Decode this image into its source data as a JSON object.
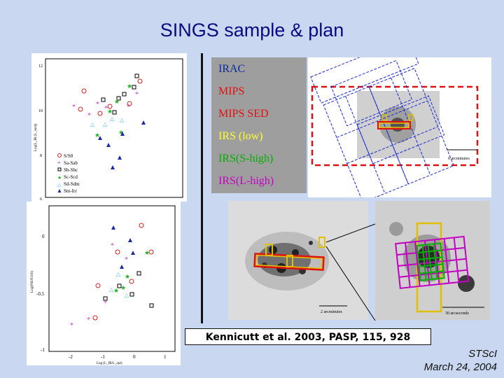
{
  "title": "SINGS sample & plan",
  "legend_items": [
    {
      "label": "IRAC",
      "color": "#0a2a9c"
    },
    {
      "label": "MIPS",
      "color": "#e01010"
    },
    {
      "label": "MIPS SED",
      "color": "#e01010"
    },
    {
      "label": "IRS (low)",
      "color": "#ffff30"
    },
    {
      "label": "IRS(S-high)",
      "color": "#00b000"
    },
    {
      "label": "IRS(L-high)",
      "color": "#c400c4"
    }
  ],
  "top_plot": {
    "ylabel": "Log(L_IR (L_sun))",
    "yticks": [
      "12",
      "10",
      "8",
      "6"
    ],
    "classes": [
      "S/S0",
      "Sa-Sab",
      "Sb-Sbc",
      "Sc-Scd",
      "Sd-Sdm",
      "Sm-Irr"
    ]
  },
  "bottom_plot": {
    "ylabel": "Log(F60/F100)",
    "xlabel": "Log (L_IR/L_opt)",
    "yticks": [
      "0",
      "-0.5",
      "-1"
    ],
    "xticks": [
      "-2",
      "-1",
      "0",
      "1"
    ]
  },
  "map_scale_top": "6 arcminutes",
  "map_scale_bottom_left": "2 arcminutes",
  "map_scale_bottom_right": "30 arcseconds",
  "citation": "Kennicutt et al. 2003, PASP, 115, 928",
  "footer": {
    "org": "STScI",
    "date": "March 24, 2004"
  }
}
